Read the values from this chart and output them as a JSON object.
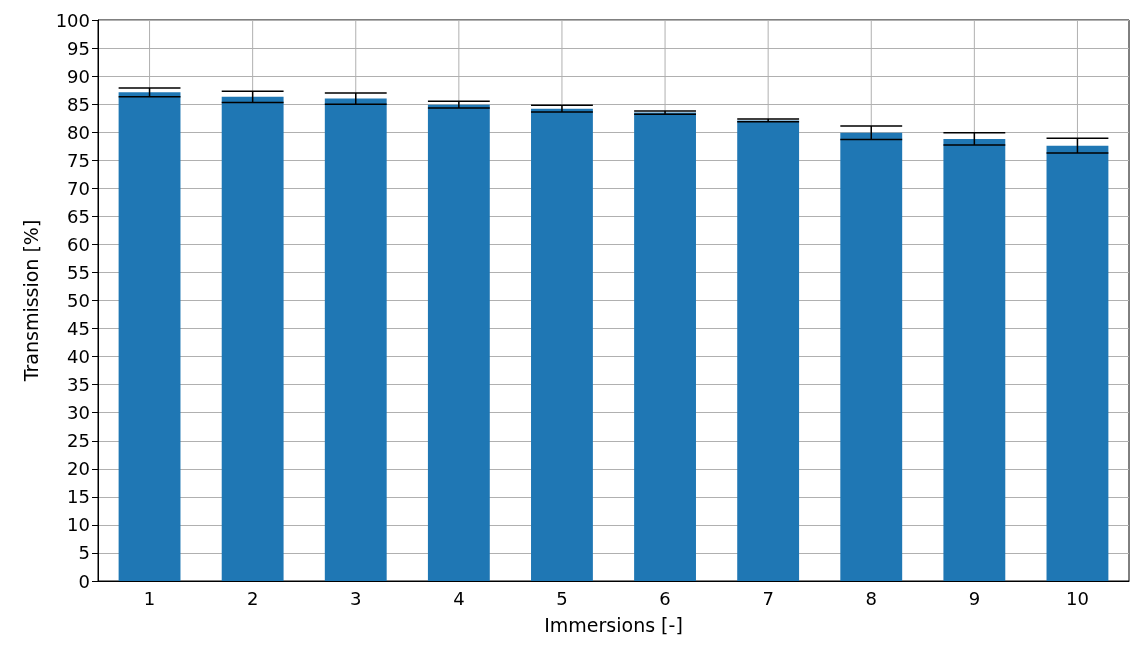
{
  "chart_data": {
    "type": "bar",
    "xlabel": "Immersions [-]",
    "ylabel": "Transmission [%]",
    "categories": [
      "1",
      "2",
      "3",
      "4",
      "5",
      "6",
      "7",
      "8",
      "9",
      "10"
    ],
    "values": [
      87.1,
      86.3,
      86.0,
      84.9,
      84.2,
      83.5,
      82.1,
      79.9,
      78.8,
      77.6
    ],
    "errors": [
      0.8,
      1.0,
      1.0,
      0.6,
      0.6,
      0.3,
      0.25,
      1.2,
      1.1,
      1.3
    ],
    "color": "#1f77b4",
    "ylim": [
      0,
      100
    ],
    "yticks": [
      0,
      5,
      10,
      15,
      20,
      25,
      30,
      35,
      40,
      45,
      50,
      55,
      60,
      65,
      70,
      75,
      80,
      85,
      90,
      95,
      100
    ],
    "grid": true
  }
}
